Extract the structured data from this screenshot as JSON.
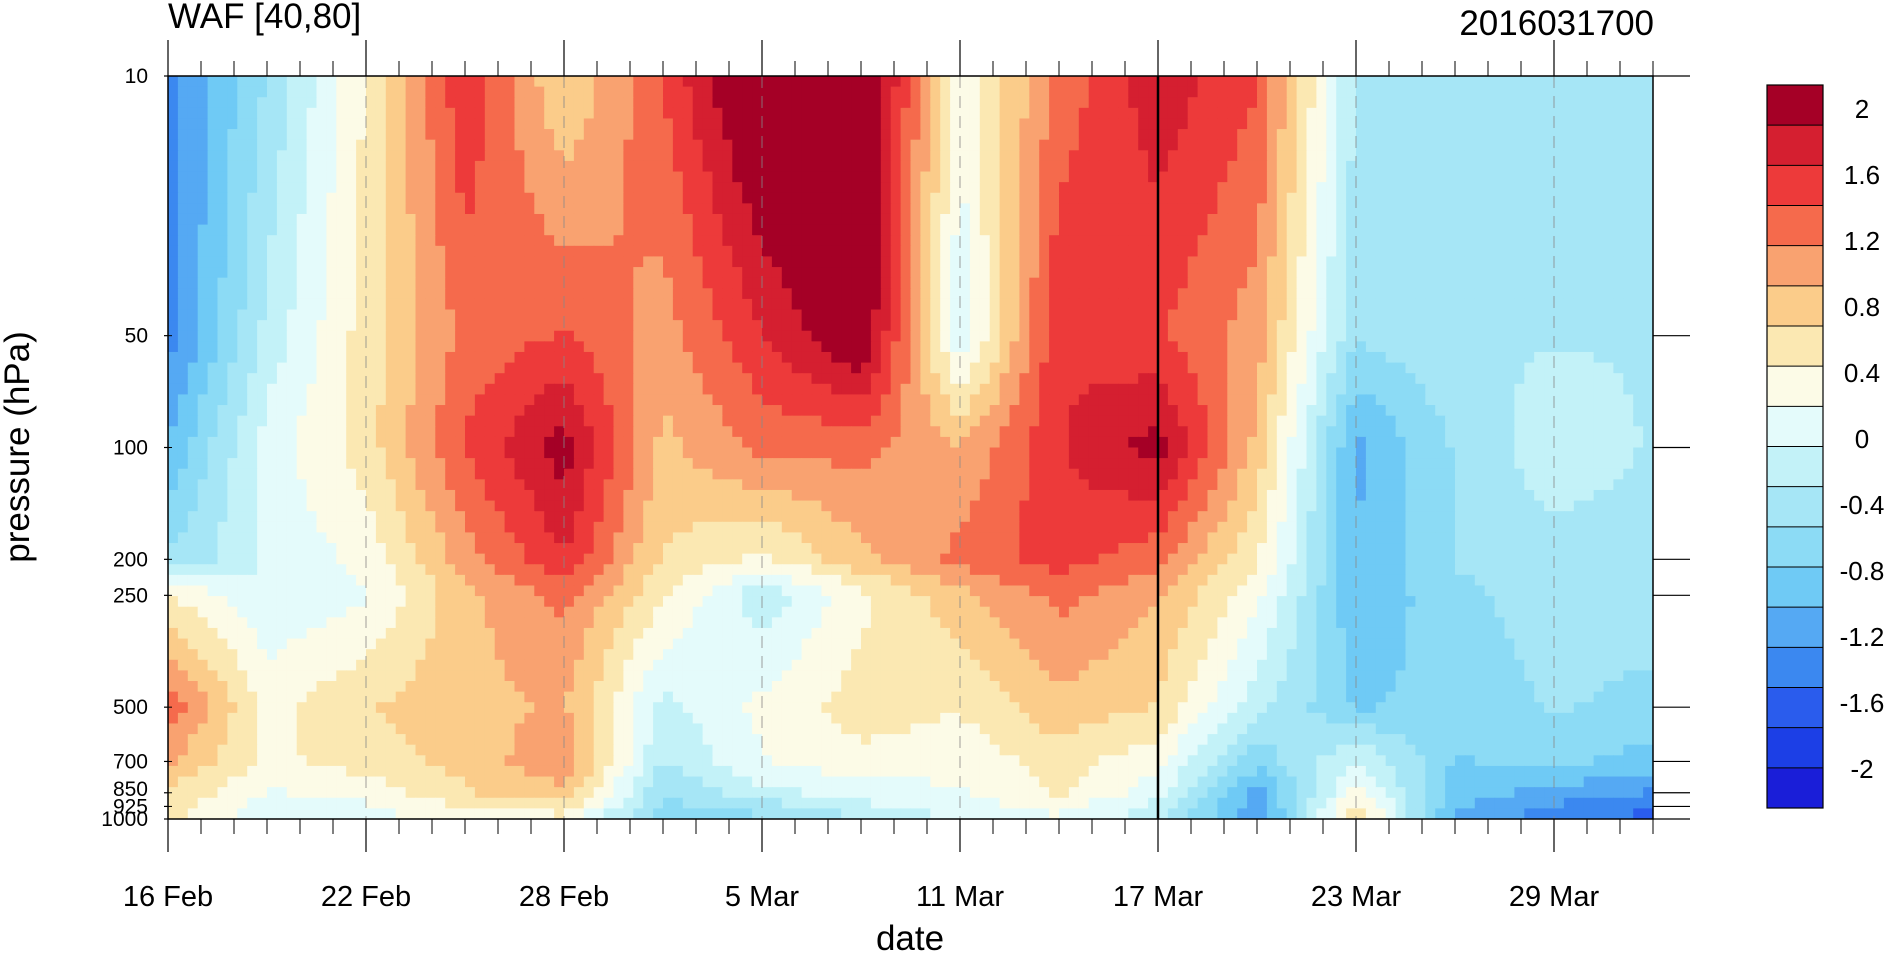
{
  "chart_data": {
    "type": "heatmap",
    "subtype": "filled-contour",
    "title_left": "WAF [40,80]",
    "title_right": "2016031700",
    "xlabel": "date",
    "ylabel": "pressure (hPa)",
    "x_tick_labels": [
      "16 Feb",
      "22 Feb",
      "28 Feb",
      "5 Mar",
      "11 Mar",
      "17 Mar",
      "23 Mar",
      "29 Mar"
    ],
    "x_days_per_major_tick": 6,
    "x_dashed_gridlines": [
      "22 Feb",
      "28 Feb",
      "5 Mar",
      "11 Mar",
      "23 Mar",
      "29 Mar"
    ],
    "x_marker_line": "17 Mar",
    "y_scale": "log",
    "y_reversed": true,
    "y_ticks": [
      10,
      50,
      100,
      200,
      250,
      500,
      700,
      850,
      925,
      1000
    ],
    "y_tick_labels": [
      "10",
      "50",
      "100",
      "200",
      "250",
      "500",
      "700",
      "850",
      "925",
      "1000"
    ],
    "colorbar": {
      "labels": [
        "2",
        "1.6",
        "1.2",
        "0.8",
        "0.4",
        "0",
        "-0.4",
        "-0.8",
        "-1.2",
        "-1.6",
        "-2"
      ],
      "colors": [
        "#a50026",
        "#d51f30",
        "#ed3a3a",
        "#f56a4c",
        "#f9a270",
        "#fbcc8a",
        "#fbe8b2",
        "#fcfbe7",
        "#e4fbfb",
        "#c3f2f8",
        "#a6e6f6",
        "#8cdbf5",
        "#6fcaf5",
        "#55a9f3",
        "#3b88f0",
        "#2a5ced",
        "#1c3fe6",
        "#1a1ed8"
      ]
    },
    "contour_levels": [
      -2,
      -1.6,
      -1.2,
      -0.8,
      -0.4,
      0,
      0.4,
      0.8,
      1.2,
      1.6,
      2
    ],
    "x_values_day": [
      0,
      3,
      6,
      9,
      12,
      15,
      18,
      21,
      24,
      27,
      30,
      33,
      36,
      39,
      42,
      45
    ],
    "y_values_hPa": [
      10,
      50,
      100,
      200,
      250,
      500,
      700,
      850,
      925,
      1000
    ],
    "z_values": [
      [
        -1.5,
        -0.6,
        0.4,
        1.6,
        0.6,
        1.4,
        2.4,
        2.4,
        0.2,
        1.2,
        1.8,
        1.4,
        -0.4,
        -0.5,
        -0.4,
        -0.4
      ],
      [
        -1.5,
        -0.3,
        0.5,
        1.2,
        1.4,
        1.0,
        1.6,
        2.2,
        -0.1,
        1.6,
        1.4,
        1.0,
        -0.6,
        -0.4,
        -0.4,
        -0.4
      ],
      [
        -1.1,
        0.0,
        0.5,
        1.4,
        2.0,
        0.8,
        1.2,
        1.2,
        0.9,
        1.6,
        2.0,
        0.8,
        -1.2,
        -0.6,
        -0.2,
        -0.4
      ],
      [
        -0.6,
        -0.1,
        0.2,
        1.0,
        1.6,
        0.6,
        0.3,
        0.8,
        1.2,
        1.5,
        1.2,
        0.4,
        -1.1,
        -0.6,
        -0.5,
        -0.5
      ],
      [
        0.4,
        -0.1,
        0.1,
        0.8,
        1.2,
        0.4,
        -0.3,
        0.3,
        0.8,
        1.2,
        0.9,
        0.2,
        -1.1,
        -0.7,
        -0.5,
        -0.5
      ],
      [
        1.3,
        0.3,
        0.6,
        0.8,
        0.9,
        -0.2,
        0.2,
        0.5,
        0.4,
        0.8,
        0.6,
        -0.3,
        -0.9,
        -0.8,
        -0.6,
        -0.7
      ],
      [
        0.9,
        0.3,
        0.5,
        0.7,
        1.1,
        -0.4,
        0.1,
        0.3,
        0.2,
        0.5,
        0.2,
        -0.8,
        -0.1,
        -0.9,
        -0.8,
        -1.0
      ],
      [
        0.6,
        0.1,
        0.2,
        0.6,
        0.8,
        -0.6,
        -0.2,
        0.0,
        0.1,
        0.4,
        0.0,
        -1.2,
        0.2,
        -1.0,
        -1.2,
        -1.4
      ],
      [
        0.5,
        0.0,
        0.1,
        0.4,
        0.5,
        -0.7,
        -0.5,
        -0.2,
        0.0,
        0.2,
        -0.2,
        -1.3,
        0.5,
        -1.1,
        -1.4,
        -1.6
      ],
      [
        0.4,
        0.0,
        0.0,
        0.2,
        0.3,
        -0.8,
        -0.7,
        -0.4,
        -0.1,
        0.1,
        -0.3,
        -1.4,
        0.6,
        -1.2,
        -1.5,
        -1.7
      ]
    ]
  }
}
